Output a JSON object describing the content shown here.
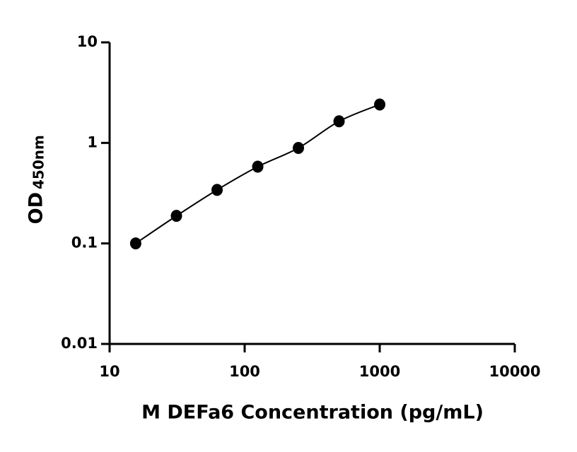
{
  "chart_data": {
    "type": "scatter",
    "x_label": "M DEFa6 Concentration (pg/mL)",
    "y_label": "OD",
    "y_label_subscript": "450nm",
    "x": [
      15.6,
      31.25,
      62.5,
      125,
      250,
      500,
      1000
    ],
    "series": [
      {
        "color": "#000000",
        "values": [
          0.1,
          0.188,
          0.341,
          0.58,
          0.89,
          1.64,
          2.41
        ]
      }
    ],
    "xlim": [
      10,
      10000
    ],
    "xticks": [
      10,
      100,
      1000,
      10000
    ],
    "ylim": [
      0.01,
      10
    ],
    "yticks": [
      0.01,
      0.1,
      1,
      10
    ],
    "xscale": "log",
    "yscale": "log",
    "fit_line": true,
    "grid": false
  }
}
